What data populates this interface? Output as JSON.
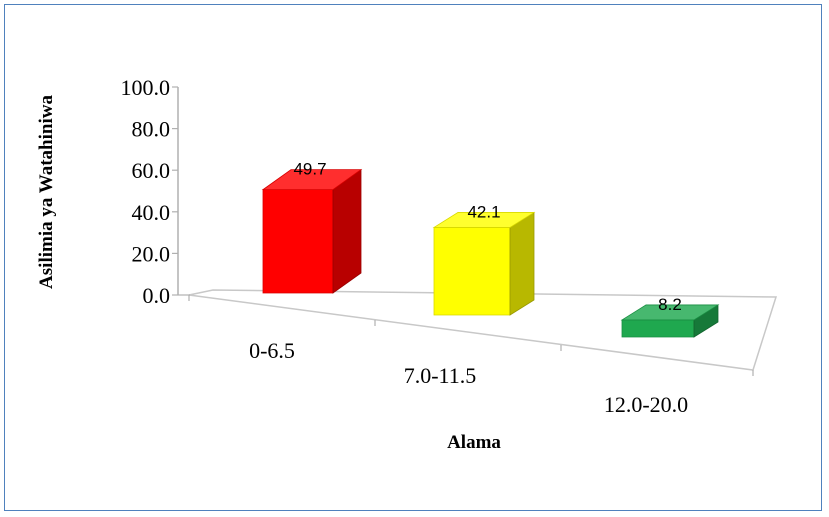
{
  "chart_data": {
    "type": "bar",
    "categories": [
      "0-6.5",
      "7.0-11.5",
      "12.0-20.0"
    ],
    "values": [
      49.7,
      42.1,
      8.2
    ],
    "data_labels": [
      "49.7",
      "42.1",
      "8.2"
    ],
    "colors": [
      "#ff0000",
      "#ffff00",
      "#1fa84f"
    ],
    "xlabel": "Alama",
    "ylabel": "Asilimia ya Watahiniwa",
    "ylim": [
      0,
      100
    ],
    "yticks": [
      "0.0",
      "20.0",
      "40.0",
      "60.0",
      "80.0",
      "100.0"
    ],
    "grid": false,
    "style": "3d"
  }
}
